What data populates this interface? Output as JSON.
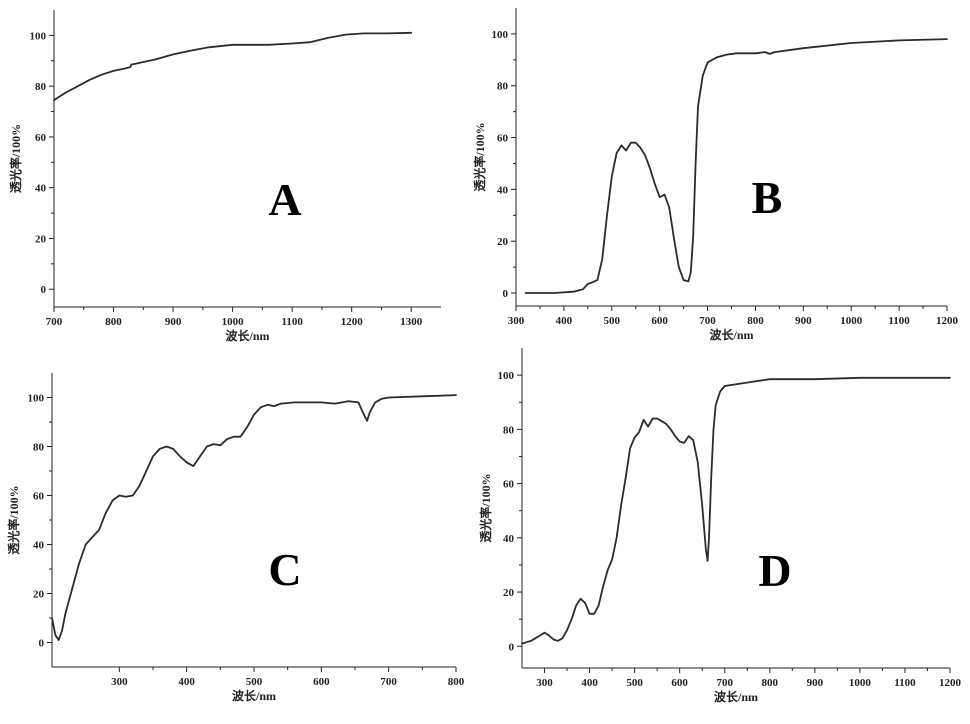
{
  "chart_data": [
    {
      "type": "line",
      "panel": "A",
      "xlabel": "波长/nm",
      "ylabel": "透光率/100%",
      "xlim": [
        700,
        1350
      ],
      "ylim": [
        -7,
        110
      ],
      "xticks": [
        700,
        800,
        900,
        1000,
        1100,
        1200,
        1300
      ],
      "yticks": [
        0,
        20,
        40,
        60,
        80,
        100
      ],
      "series": [
        {
          "x": [
            700,
            720,
            740,
            760,
            780,
            800,
            820,
            828,
            830,
            850,
            870,
            900,
            930,
            960,
            1000,
            1030,
            1060,
            1100,
            1130,
            1160,
            1190,
            1220,
            1260,
            1300
          ],
          "y": [
            74.5,
            77.5,
            80,
            82.5,
            84.5,
            86,
            87,
            87.5,
            88.5,
            89.5,
            90.5,
            92.5,
            94,
            95.3,
            96.3,
            96.3,
            96.3,
            96.8,
            97.3,
            99,
            100.3,
            100.8,
            100.8,
            101
          ]
        }
      ]
    },
    {
      "type": "line",
      "panel": "B",
      "xlabel": "波长/nm",
      "ylabel": "透光率/100%",
      "xlim": [
        300,
        1200
      ],
      "ylim": [
        -5,
        110
      ],
      "xticks": [
        300,
        400,
        500,
        600,
        700,
        800,
        900,
        1000,
        1100,
        1200
      ],
      "yticks": [
        0,
        20,
        40,
        60,
        80,
        100
      ],
      "series": [
        {
          "x": [
            320,
            380,
            420,
            440,
            450,
            460,
            470,
            480,
            490,
            500,
            510,
            520,
            530,
            540,
            550,
            560,
            570,
            580,
            590,
            600,
            610,
            620,
            630,
            640,
            650,
            660,
            665,
            670,
            675,
            680,
            690,
            700,
            720,
            740,
            760,
            780,
            800,
            820,
            830,
            840,
            900,
            1000,
            1100,
            1200
          ],
          "y": [
            0,
            0,
            0.5,
            1.5,
            3.5,
            4.2,
            5,
            13,
            30,
            45,
            54,
            57,
            55,
            58,
            58,
            56,
            53,
            48,
            42,
            37,
            38,
            33,
            21,
            10,
            5,
            4.5,
            8,
            22,
            50,
            72,
            84,
            89,
            91,
            92,
            92.5,
            92.5,
            92.5,
            93,
            92.3,
            93,
            94.5,
            96.5,
            97.5,
            98
          ]
        }
      ]
    },
    {
      "type": "line",
      "panel": "C",
      "xlabel": "波长/nm",
      "ylabel": "透光率/100%",
      "xlim": [
        200,
        800
      ],
      "ylim": [
        -10,
        110
      ],
      "xticks": [
        300,
        400,
        500,
        600,
        700,
        800
      ],
      "yticks": [
        0,
        20,
        40,
        60,
        80,
        100
      ],
      "series": [
        {
          "x": [
            200,
            205,
            210,
            215,
            220,
            230,
            240,
            250,
            260,
            270,
            280,
            290,
            300,
            310,
            320,
            330,
            340,
            350,
            360,
            370,
            380,
            390,
            400,
            410,
            420,
            430,
            440,
            450,
            460,
            470,
            480,
            490,
            500,
            510,
            520,
            530,
            540,
            560,
            580,
            600,
            620,
            640,
            655,
            660,
            665,
            668,
            672,
            680,
            690,
            700,
            750,
            800
          ],
          "y": [
            10,
            3,
            1,
            5,
            12,
            22,
            32,
            40,
            43,
            46,
            53,
            58,
            60,
            59.5,
            60,
            64,
            70,
            76,
            79,
            80,
            79,
            76,
            73.5,
            72,
            76,
            80,
            81,
            80.5,
            83,
            84,
            84,
            88,
            93,
            96,
            97,
            96.5,
            97.5,
            98,
            98,
            98,
            97.5,
            98.5,
            98,
            95,
            92,
            90.5,
            94,
            98,
            99.5,
            100,
            100.5,
            101
          ]
        }
      ]
    },
    {
      "type": "line",
      "panel": "D",
      "xlabel": "波长/nm",
      "ylabel": "透光率/100%",
      "xlim": [
        250,
        1200
      ],
      "ylim": [
        -8,
        110
      ],
      "xticks": [
        300,
        400,
        500,
        600,
        700,
        800,
        900,
        1000,
        1100,
        1200
      ],
      "yticks": [
        0,
        20,
        40,
        60,
        80,
        100
      ],
      "series": [
        {
          "x": [
            250,
            260,
            270,
            280,
            290,
            300,
            310,
            320,
            330,
            340,
            350,
            360,
            370,
            380,
            390,
            400,
            410,
            420,
            430,
            440,
            450,
            460,
            470,
            480,
            490,
            500,
            510,
            520,
            530,
            540,
            550,
            560,
            570,
            580,
            590,
            600,
            610,
            620,
            630,
            640,
            650,
            658,
            662,
            665,
            670,
            675,
            680,
            690,
            700,
            720,
            760,
            800,
            900,
            1000,
            1100,
            1200
          ],
          "y": [
            1,
            1.5,
            2,
            3,
            4,
            5,
            4,
            2.5,
            2,
            3,
            6,
            10,
            15,
            17.5,
            16,
            12,
            12,
            15,
            22,
            28,
            32,
            40,
            52,
            62,
            73,
            77,
            79,
            83.5,
            81,
            84,
            84,
            83,
            82,
            80,
            77.5,
            75.5,
            75,
            77.5,
            76,
            68,
            52,
            36,
            31.5,
            40,
            62,
            80,
            89,
            94,
            96,
            96.5,
            97.5,
            98.5,
            98.5,
            99,
            99,
            99
          ]
        }
      ]
    }
  ]
}
